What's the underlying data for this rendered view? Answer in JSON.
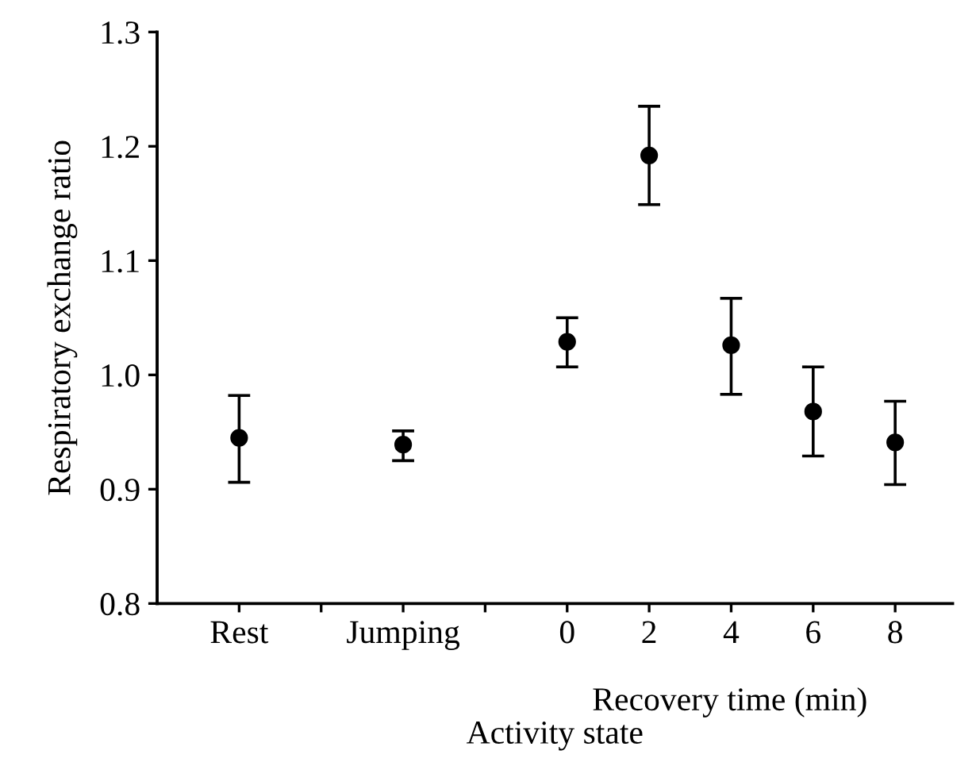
{
  "chart_data": {
    "type": "scatter",
    "xlabel": "Activity state",
    "ylabel": "Respiratory exchange ratio",
    "categories": [
      "Rest",
      null,
      "Jumping",
      null,
      "0",
      "2",
      "4",
      "6",
      "8"
    ],
    "values": [
      0.945,
      null,
      0.939,
      null,
      1.029,
      1.192,
      1.026,
      0.968,
      0.941
    ],
    "errors": [
      [
        0.906,
        0.982
      ],
      null,
      [
        0.925,
        0.951
      ],
      null,
      [
        1.007,
        1.05
      ],
      [
        1.149,
        1.235
      ],
      [
        0.983,
        1.067
      ],
      [
        0.929,
        1.007
      ],
      [
        0.904,
        0.977
      ]
    ],
    "color": "#000000",
    "marker": "circle",
    "ylim": [
      0.8,
      1.3
    ],
    "yticks": [
      0.8,
      0.9,
      {
        "value": 1,
        "label": "1.0"
      },
      1.1,
      1.2,
      1.3
    ],
    "annotations": [
      "Recovery time (min)"
    ],
    "grid": false,
    "legend": false
  }
}
